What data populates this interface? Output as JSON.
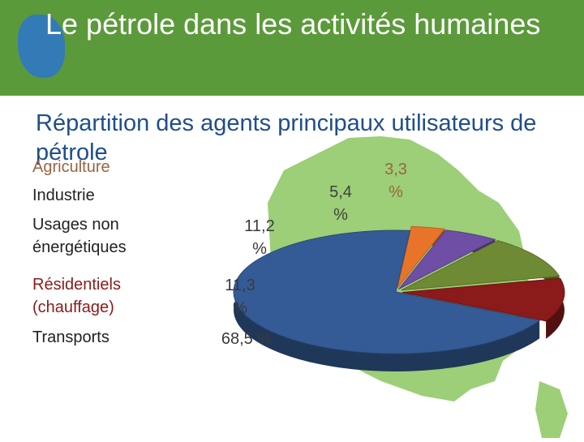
{
  "slide": {
    "title": "Le pétrole dans les activités humaines",
    "subtitle": "Répartition des agents principaux utilisateurs de pétrole"
  },
  "colors": {
    "header_bg": "#5b9a3a",
    "accent_blob": "#2f78c4",
    "map_fill": "#7bbf4a",
    "subtitle": "#1f4e8c"
  },
  "chart_data": {
    "type": "pie",
    "title": "Répartition des agents principaux utilisateurs de pétrole",
    "categories": [
      "Agriculture",
      "Industrie",
      "Usages non\nénergétiques",
      "Résidentiels\n(chauffage)",
      "Transports"
    ],
    "values": [
      3.3,
      5.4,
      11.2,
      11.3,
      68.5
    ],
    "labels": [
      "3,3\n%",
      "5,4\n%",
      "11,2\n%",
      "11,3\n%",
      "68,5 %"
    ],
    "legend": "left",
    "colors": [
      "#e8742a",
      "#6e4fa5",
      "#6f8a34",
      "#8b1a1a",
      "#345b95"
    ],
    "label_colors": [
      "#9a6440",
      "#404040",
      "#3a3a3a",
      "#3a3a3a",
      "#3a3a3a"
    ],
    "legend_colors": [
      "#9a6440",
      "#222222",
      "#222222",
      "#8b1a1a",
      "#222222"
    ]
  }
}
